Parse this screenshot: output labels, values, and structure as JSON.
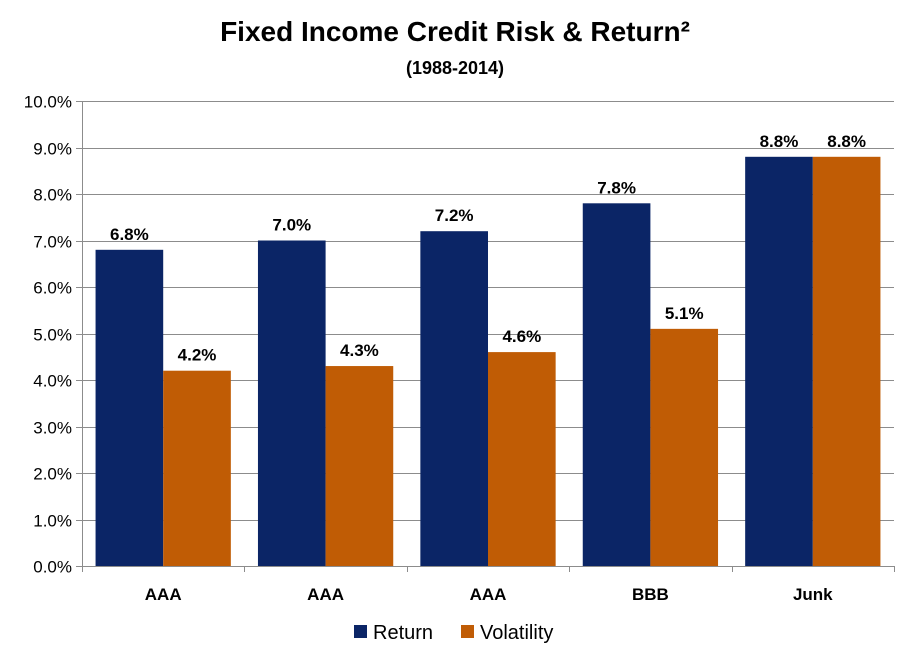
{
  "chart_data": {
    "type": "bar",
    "title": "Fixed Income Credit Risk & Return²",
    "subtitle": "(1988-2014)",
    "categories": [
      "AAA",
      "AAA",
      "AAA",
      "BBB",
      "Junk"
    ],
    "series": [
      {
        "name": "Return",
        "color": "#0b2566",
        "values": [
          6.8,
          7.0,
          7.2,
          7.8,
          8.8
        ],
        "labels": [
          "6.8%",
          "7.0%",
          "7.2%",
          "7.8%",
          "8.8%"
        ]
      },
      {
        "name": "Volatility",
        "color": "#c05c05",
        "values": [
          4.2,
          4.3,
          4.6,
          5.1,
          8.8
        ],
        "labels": [
          "4.2%",
          "4.3%",
          "4.6%",
          "5.1%",
          "8.8%"
        ]
      }
    ],
    "ylim": [
      0,
      10
    ],
    "yticks": [
      0,
      1,
      2,
      3,
      4,
      5,
      6,
      7,
      8,
      9,
      10
    ],
    "ytick_labels": [
      "0.0%",
      "1.0%",
      "2.0%",
      "3.0%",
      "4.0%",
      "5.0%",
      "6.0%",
      "7.0%",
      "8.0%",
      "9.0%",
      "10.0%"
    ],
    "grid": true,
    "legend_position": "bottom",
    "xlabel": "",
    "ylabel": ""
  }
}
